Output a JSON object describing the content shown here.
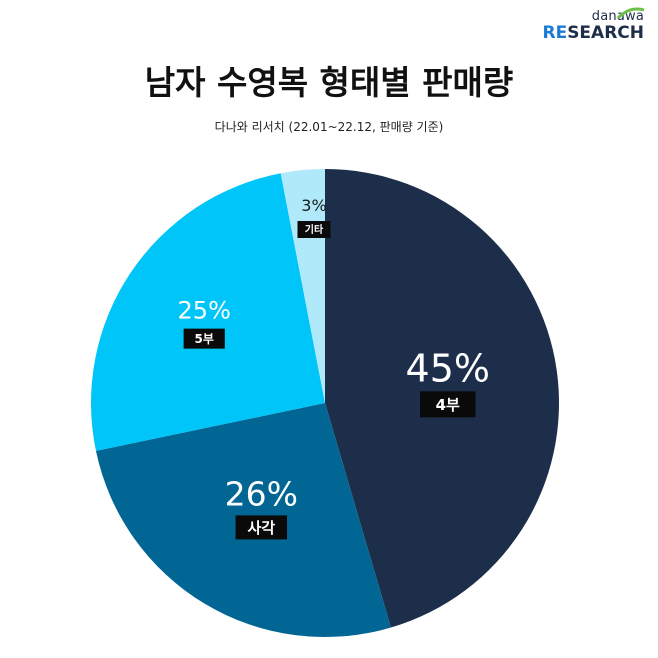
{
  "logo": {
    "brand": "danawa",
    "research_prefix": "RE",
    "research_rest": "SEARCH"
  },
  "chart_data": {
    "type": "pie",
    "title": "남자 수영복 형태별 판매량",
    "subtitle": "다나와 리서치 (22.01~22.12, 판매량 기준)",
    "slices": [
      {
        "label": "4부",
        "value": 45,
        "display": "45%",
        "color": "#1d2e4b"
      },
      {
        "label": "사각",
        "value": 26,
        "display": "26%",
        "color": "#026694"
      },
      {
        "label": "5부",
        "value": 25,
        "display": "25%",
        "color": "#00c5f8"
      },
      {
        "label": "기타",
        "value": 3,
        "display": "3%",
        "color": "#b0e9fa"
      }
    ],
    "start_angle": "12 o'clock",
    "direction": "clockwise"
  }
}
